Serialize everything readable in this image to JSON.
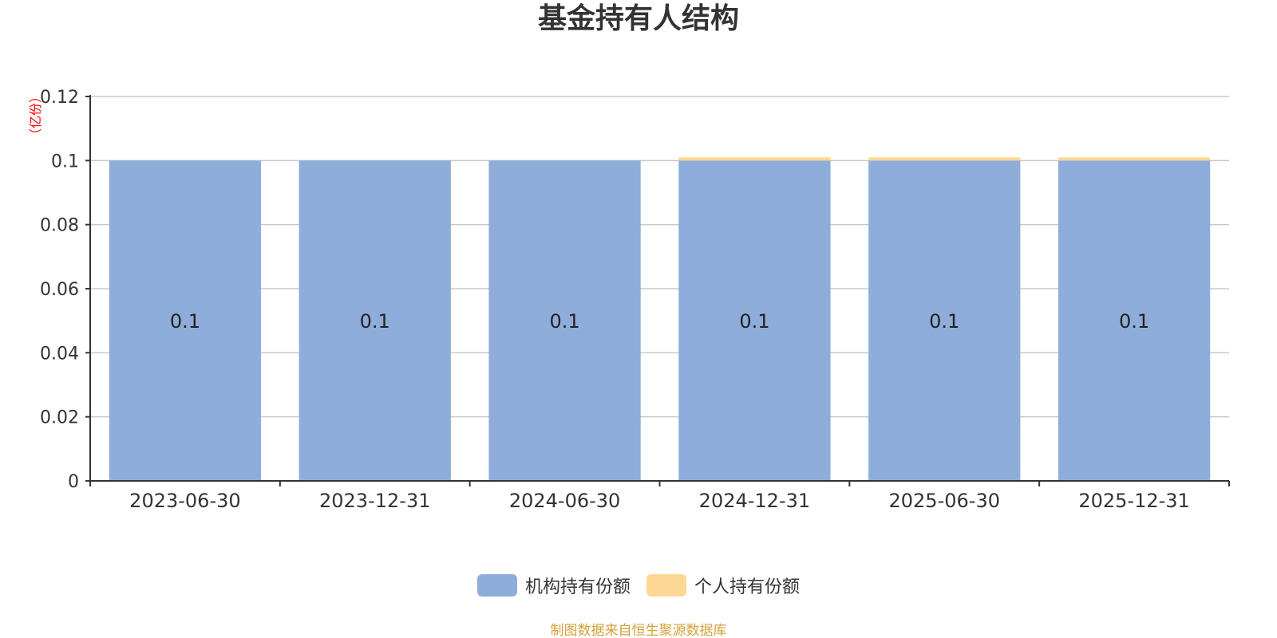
{
  "chart_data": {
    "type": "bar",
    "stacked": true,
    "title": "基金持有人结构",
    "ylabel": "（亿份）",
    "xlabel": "",
    "categories": [
      "2023-06-30",
      "2023-12-31",
      "2024-06-30",
      "2024-12-31",
      "2025-06-30",
      "2025-12-31"
    ],
    "series": [
      {
        "name": "机构持有份额",
        "color": "#8eadda",
        "values": [
          0.1,
          0.1,
          0.1,
          0.1,
          0.1,
          0.1
        ],
        "data_labels": [
          "0.1",
          "0.1",
          "0.1",
          "0.1",
          "0.1",
          "0.1"
        ]
      },
      {
        "name": "个人持有份额",
        "color": "#fdd895",
        "values": [
          0,
          0,
          0,
          0.001,
          0.001,
          0.001
        ]
      }
    ],
    "ylim": [
      0,
      0.12
    ],
    "yticks": [
      "0",
      "0.02",
      "0.04",
      "0.06",
      "0.08",
      "0.1",
      "0.12"
    ],
    "ytick_values": [
      0,
      0.02,
      0.04,
      0.06,
      0.08,
      0.1,
      0.12
    ],
    "grid": true,
    "legend_position": "bottom-center"
  },
  "source_note": "制图数据来自恒生聚源数据库"
}
